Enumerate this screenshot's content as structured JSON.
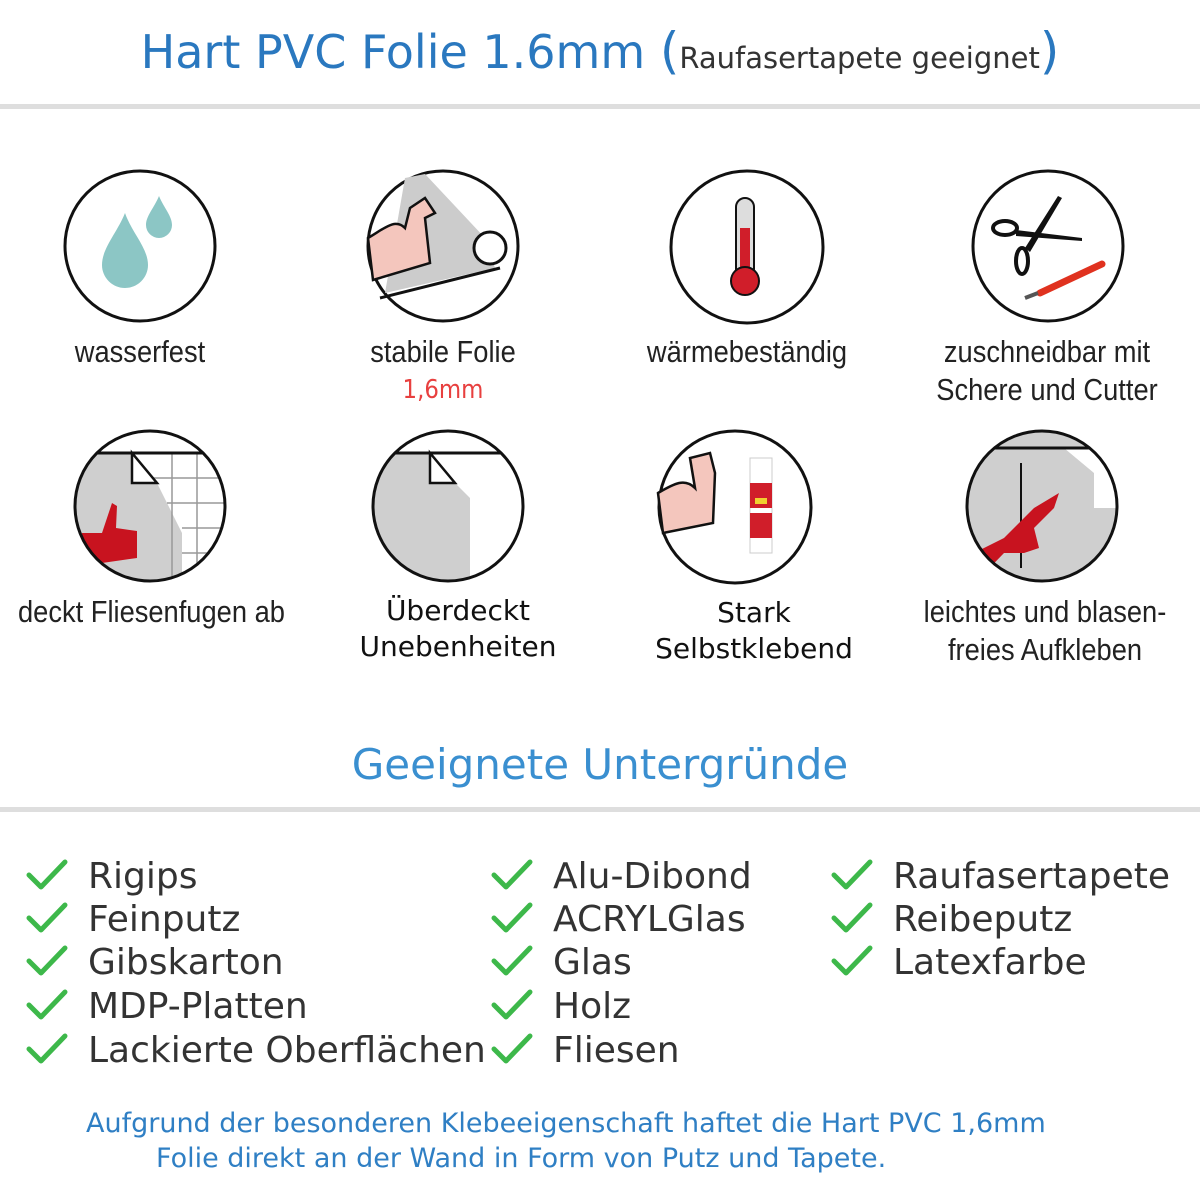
{
  "header": {
    "title": "Hart PVC Folie 1.6mm",
    "paren_open": "(",
    "subtitle": "Raufasertapete geeignet",
    "paren_close": ")"
  },
  "features": [
    {
      "icon": "water-drops-icon",
      "line1": "wasserfest"
    },
    {
      "icon": "strong-arm-roll-icon",
      "line1": "stabile Folie",
      "line2": "1,6mm"
    },
    {
      "icon": "thermometer-icon",
      "line1": "wärmebeständig"
    },
    {
      "icon": "scissors-cutter-icon",
      "line1": "zuschneidbar mit",
      "line2": "Schere und Cutter"
    },
    {
      "icon": "thumbs-up-tiles-icon",
      "line1": "deckt Fliesenfugen ab"
    },
    {
      "icon": "foil-corner-icon",
      "line1": "Überdeckt",
      "line2": "Unebenheiten"
    },
    {
      "icon": "strong-arm-glue-icon",
      "line1": "Stark",
      "line2": "Selbstklebend"
    },
    {
      "icon": "hand-smoothing-icon",
      "line1": "leichtes und blasen-",
      "line2": "freies Aufkleben"
    }
  ],
  "surfaces": {
    "title": "Geeignete Untergründe",
    "columns": [
      [
        "Rigips",
        "Feinputz",
        "Gibskarton",
        "MDP-Platten",
        "Lackierte Oberflächen"
      ],
      [
        "Alu-Dibond",
        "ACRYLGlas",
        "Glas",
        "Holz",
        "Fliesen"
      ],
      [
        "Raufasertapete",
        "Reibeputz",
        "Latexfarbe"
      ]
    ]
  },
  "footer": {
    "line1": "Aufgrund der besonderen Klebeeigenschaft haftet die Hart PVC 1,6mm",
    "line2": "Folie direkt an der Wand in Form von Putz und Tapete."
  },
  "colors": {
    "title_blue": "#2a78bf",
    "check_green": "#3db84a",
    "accent_red": "#e8403f"
  }
}
